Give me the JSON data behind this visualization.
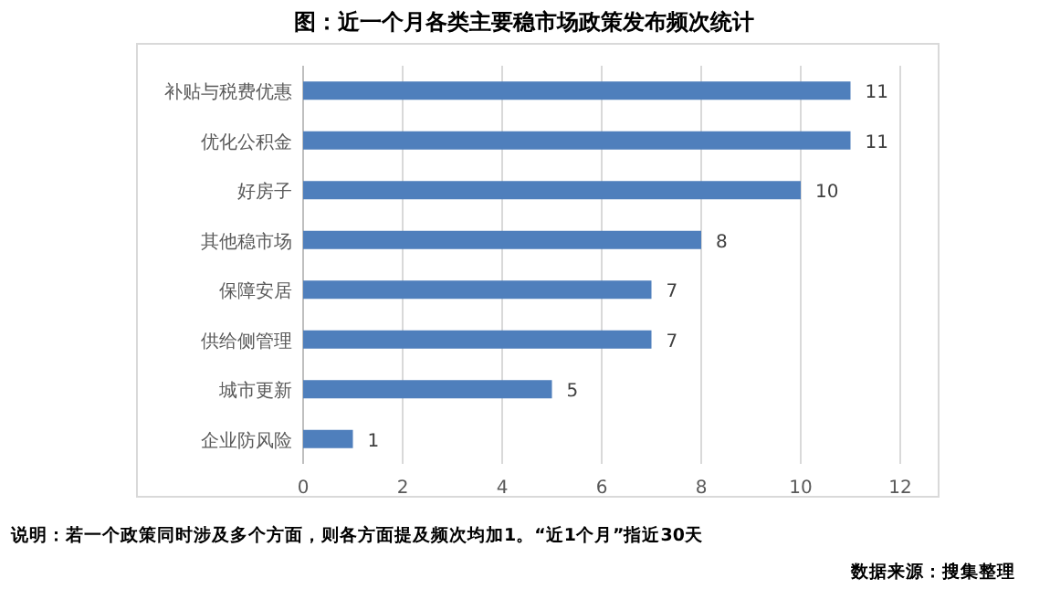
{
  "chart_data": {
    "type": "bar",
    "orientation": "horizontal",
    "title": "图：近一个月各类主要稳市场政策发布频次统计",
    "categories": [
      "补贴与税费优惠",
      "优化公积金",
      "好房子",
      "其他稳市场",
      "保障安居",
      "供给侧管理",
      "城市更新",
      "企业防风险"
    ],
    "values": [
      11,
      11,
      10,
      8,
      7,
      7,
      5,
      1
    ],
    "color": "#4f7fbc",
    "xlim": [
      0,
      12
    ],
    "xticks": [
      0,
      2,
      4,
      6,
      8,
      10,
      12
    ],
    "grid": "x",
    "data_labels": true,
    "annotations": [
      "说明：若一个政策同时涉及多个方面，则各方面提及频次均加1。“近1个月”指近30天",
      "数据来源：搜集整理"
    ]
  }
}
